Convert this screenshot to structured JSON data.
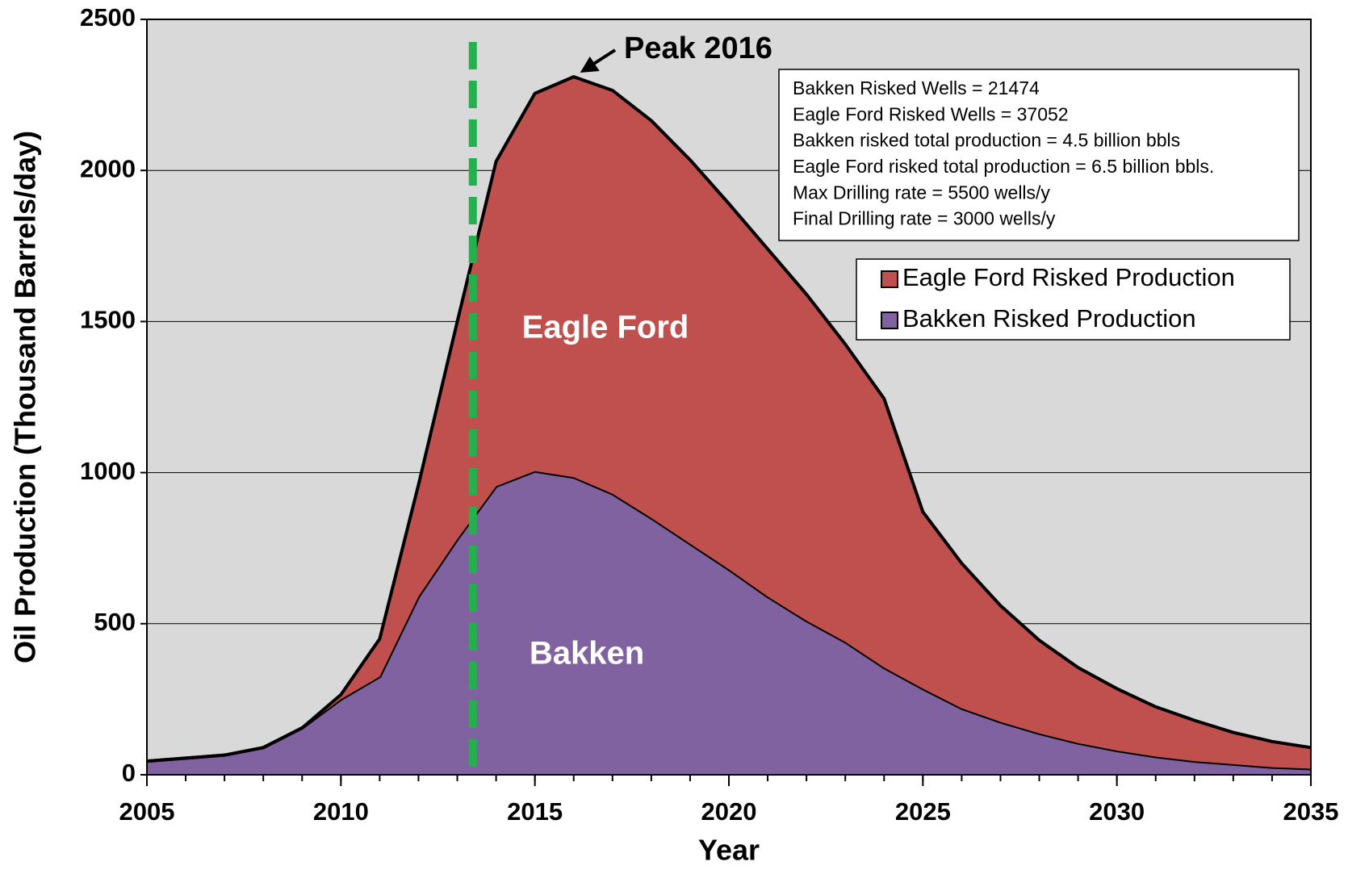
{
  "chart_data": {
    "type": "stacked_area",
    "x": [
      2005,
      2006,
      2007,
      2008,
      2009,
      2010,
      2011,
      2012,
      2013,
      2014,
      2015,
      2016,
      2017,
      2018,
      2019,
      2020,
      2021,
      2022,
      2023,
      2024,
      2025,
      2026,
      2027,
      2028,
      2029,
      2030,
      2031,
      2032,
      2033,
      2034,
      2035
    ],
    "series": [
      {
        "name": "Bakken Risked Production",
        "color": "#8062a0",
        "values": [
          45,
          55,
          65,
          90,
          155,
          250,
          325,
          590,
          780,
          955,
          1005,
          985,
          930,
          850,
          765,
          680,
          590,
          510,
          440,
          355,
          285,
          220,
          175,
          137,
          105,
          80,
          60,
          45,
          35,
          25,
          20
        ]
      },
      {
        "name": "Eagle Ford Risked Production",
        "color": "#c0504d",
        "values": [
          0,
          0,
          0,
          0,
          0,
          15,
          125,
          370,
          720,
          1075,
          1250,
          1325,
          1335,
          1315,
          1270,
          1210,
          1150,
          1080,
          985,
          890,
          585,
          480,
          385,
          308,
          250,
          205,
          165,
          135,
          105,
          85,
          70
        ]
      }
    ],
    "xlim": [
      2005,
      2035
    ],
    "xticks": [
      2005,
      2010,
      2015,
      2020,
      2025,
      2030,
      2035
    ],
    "ylim": [
      0,
      2500
    ],
    "yticks": [
      0,
      500,
      1000,
      1500,
      2000,
      2500
    ],
    "grid": true,
    "x_label": "Year",
    "y_label": "Oil Production (Thousand Barrels/day)",
    "area_labels": [
      "Bakken",
      "Eagle Ford"
    ],
    "vline": {
      "x": 2013.4,
      "color": "#22b14c"
    },
    "annotation": {
      "text": "Peak 2016",
      "x": 2016
    },
    "notes": [
      "Bakken Risked Wells = 21474",
      "Eagle Ford Risked Wells = 37052",
      "Bakken risked total production = 4.5 billion bbls",
      "Eagle Ford risked total production = 6.5 billion bbls.",
      "Max Drilling rate = 5500 wells/y",
      "Final Drilling rate = 3000 wells/y"
    ],
    "legend": "upper right"
  }
}
